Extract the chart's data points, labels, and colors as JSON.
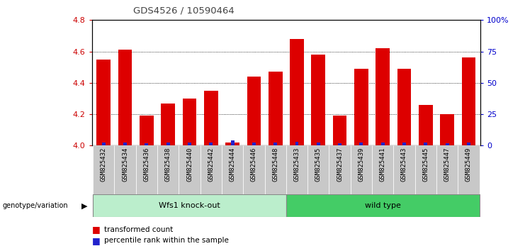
{
  "title": "GDS4526 / 10590464",
  "samples": [
    "GSM825432",
    "GSM825434",
    "GSM825436",
    "GSM825438",
    "GSM825440",
    "GSM825442",
    "GSM825444",
    "GSM825446",
    "GSM825448",
    "GSM825433",
    "GSM825435",
    "GSM825437",
    "GSM825439",
    "GSM825441",
    "GSM825443",
    "GSM825445",
    "GSM825447",
    "GSM825449"
  ],
  "red_values": [
    4.55,
    4.61,
    4.19,
    4.27,
    4.3,
    4.35,
    4.02,
    4.44,
    4.47,
    4.68,
    4.58,
    4.19,
    4.49,
    4.62,
    4.49,
    4.26,
    4.2,
    4.56
  ],
  "blue_percentile": [
    10,
    10,
    8,
    10,
    10,
    10,
    16,
    10,
    10,
    12,
    10,
    8,
    10,
    10,
    10,
    10,
    8,
    10
  ],
  "group1_label": "Wfs1 knock-out",
  "group2_label": "wild type",
  "group1_count": 9,
  "group2_count": 9,
  "y_min": 4.0,
  "y_max": 4.8,
  "y_ticks": [
    4.0,
    4.2,
    4.4,
    4.6,
    4.8
  ],
  "right_y_ticks": [
    0,
    25,
    50,
    75,
    100
  ],
  "right_y_labels": [
    "0",
    "25",
    "50",
    "75",
    "100%"
  ],
  "bar_color_red": "#DD0000",
  "bar_color_blue": "#2222CC",
  "group1_bg": "#BBEECC",
  "group2_bg": "#44CC66",
  "xlabel_area_bg": "#C8C8C8",
  "legend_red": "transformed count",
  "legend_blue": "percentile rank within the sample",
  "genotype_label": "genotype/variation",
  "plot_bg": "#FFFFFF",
  "title_color": "#444444",
  "axis_label_color_red": "#CC0000",
  "axis_label_color_blue": "#0000CC"
}
